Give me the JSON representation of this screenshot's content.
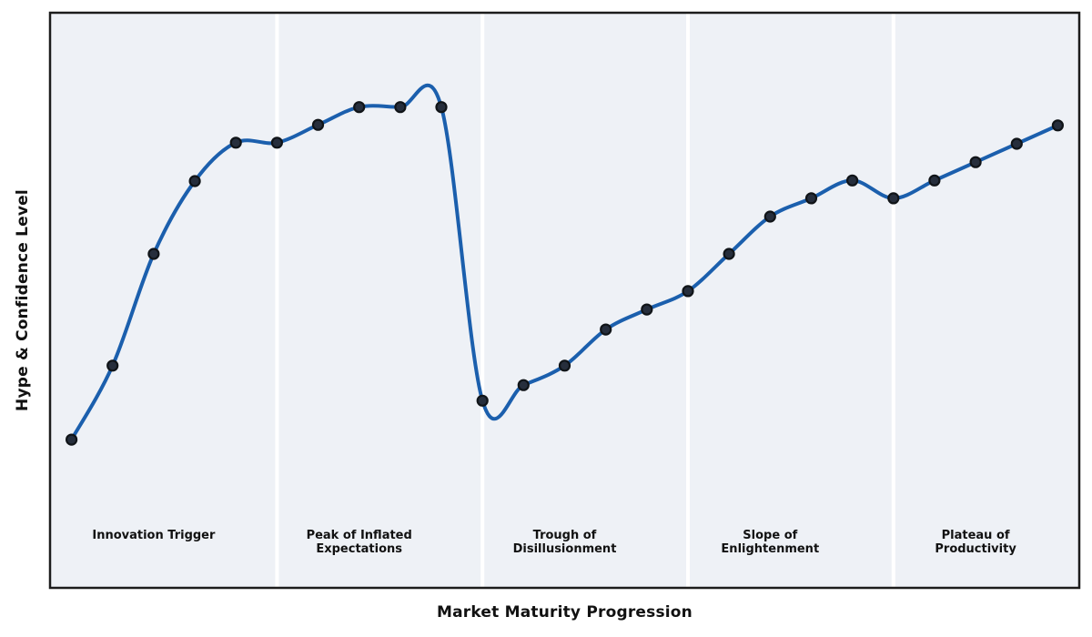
{
  "chart_data": {
    "type": "line",
    "title": "",
    "xlabel": "Market Maturity Progression",
    "ylabel": "Hype & Confidence Level",
    "x": [
      0,
      1,
      2,
      3,
      4,
      5,
      6,
      7,
      8,
      9,
      10,
      11,
      12,
      13,
      14,
      15,
      16,
      17,
      18,
      19,
      20,
      21,
      22,
      23,
      24
    ],
    "series": [
      {
        "name": "Hype & Confidence",
        "values": [
          25.7,
          38.6,
          58.1,
          70.8,
          77.5,
          77.5,
          80.6,
          83.7,
          83.7,
          83.7,
          32.5,
          35.2,
          38.6,
          44.9,
          48.4,
          51.6,
          58.1,
          64.6,
          67.8,
          70.9,
          67.8,
          70.9,
          74.1,
          77.3,
          80.5
        ]
      }
    ],
    "xlim": [
      -0.5,
      24.5
    ],
    "ylim": [
      0,
      100
    ],
    "grid": false,
    "legend": "none",
    "axis_ticks": "none",
    "line_style": "smooth-spline",
    "marker": "circle",
    "phases": [
      {
        "label": "Innovation Trigger",
        "lines": [
          "Innovation Trigger"
        ],
        "x_start": -0.5,
        "x_end": 5,
        "label_x": 2
      },
      {
        "label": "Peak of Inflated Expectations",
        "lines": [
          "Peak of Inflated",
          "Expectations"
        ],
        "x_start": 5,
        "x_end": 10,
        "label_x": 7
      },
      {
        "label": "Trough of Disillusionment",
        "lines": [
          "Trough of",
          "Disillusionment"
        ],
        "x_start": 10,
        "x_end": 15,
        "label_x": 12
      },
      {
        "label": "Slope of Enlightenment",
        "lines": [
          "Slope of",
          "Enlightenment"
        ],
        "x_start": 15,
        "x_end": 20,
        "label_x": 17
      },
      {
        "label": "Plateau of Productivity",
        "lines": [
          "Plateau of",
          "Productivity"
        ],
        "x_start": 20,
        "x_end": 24.5,
        "label_x": 22
      }
    ],
    "colors": {
      "line": "#1b5fad",
      "marker_fill": "#262e3c",
      "marker_edge": "#101418",
      "plot_background": "#eef1f6",
      "phase_divider": "#ffffff",
      "border": "#1c1c1c",
      "text": "#111111"
    }
  }
}
